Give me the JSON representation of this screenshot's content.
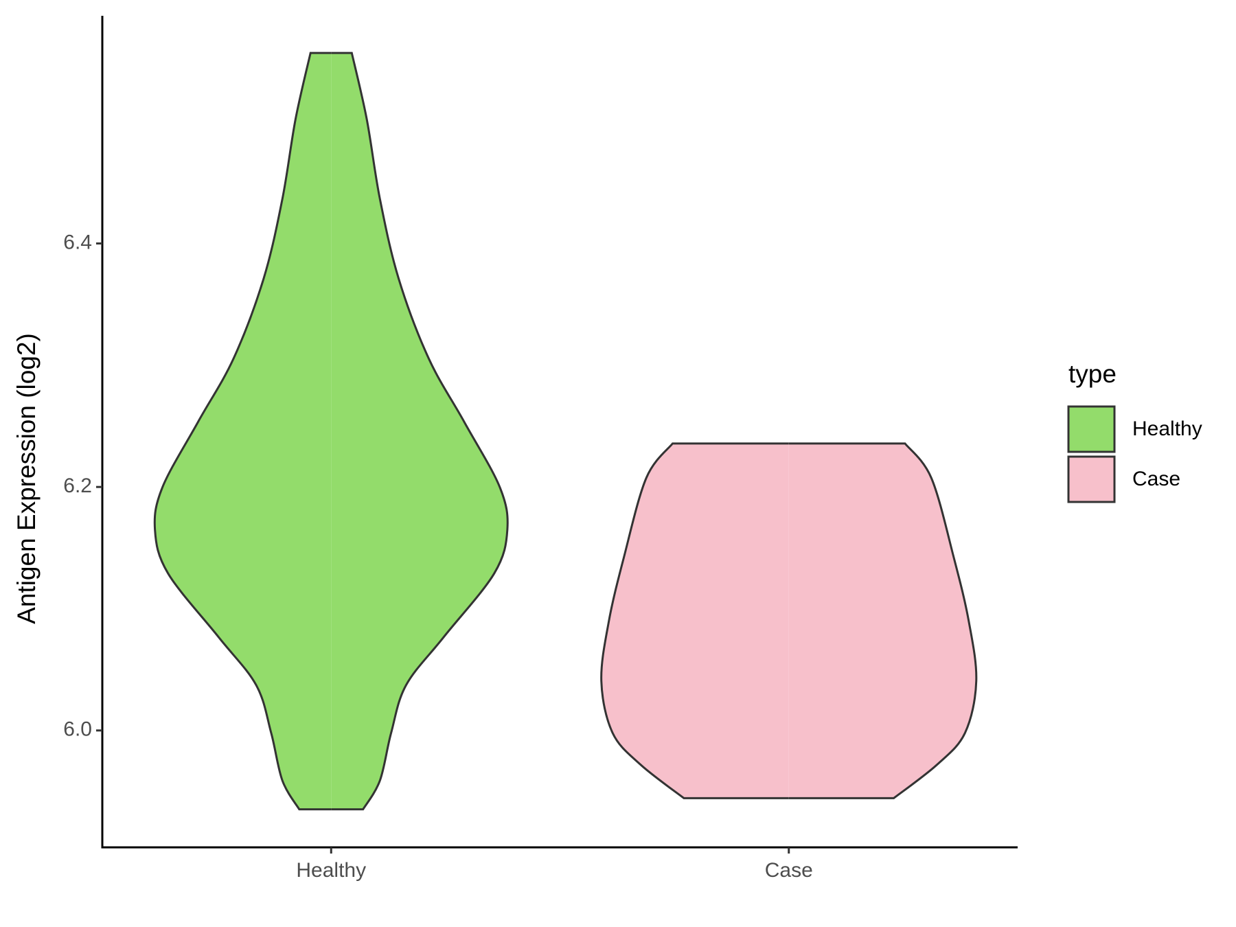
{
  "chart_data": {
    "type": "violin",
    "y_label": "Antigen Expression (log2)",
    "categories": [
      "Healthy",
      "Case"
    ],
    "ylim": [
      5.904,
      6.587
    ],
    "yticks": [
      6.0,
      6.2,
      6.4
    ],
    "series": [
      {
        "name": "Healthy",
        "color": "#93dc6b",
        "y": [
          6.5565,
          6.5021,
          6.4367,
          6.3712,
          6.3057,
          6.2534,
          6.1997,
          6.165,
          6.129,
          6.0766,
          6.0373,
          5.998,
          5.9588,
          5.9352
        ],
        "density": [
          0.11,
          0.19,
          0.26,
          0.36,
          0.52,
          0.71,
          0.9,
          0.94,
          0.87,
          0.6,
          0.4,
          0.32,
          0.26,
          0.17
        ]
      },
      {
        "name": "Case",
        "color": "#f7c0cb",
        "y": [
          6.2357,
          6.2075,
          6.1421,
          6.0897,
          6.0406,
          5.998,
          5.9718,
          5.9444
        ],
        "density": [
          0.62,
          0.76,
          0.88,
          0.96,
          1.0,
          0.94,
          0.79,
          0.56
        ]
      }
    ],
    "legend": {
      "title": "type",
      "position": "right"
    }
  }
}
